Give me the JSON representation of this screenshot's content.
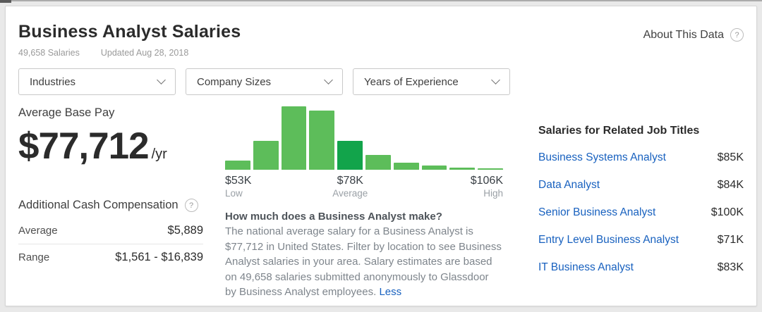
{
  "page": {
    "title": "Business Analyst Salaries",
    "salary_count": "49,658 Salaries",
    "updated": "Updated Aug 28, 2018",
    "about_label": "About This Data",
    "help_glyph": "?"
  },
  "filters": [
    {
      "label": "Industries"
    },
    {
      "label": "Company Sizes"
    },
    {
      "label": "Years of Experience"
    }
  ],
  "average_base_pay": {
    "label": "Average Base Pay",
    "amount": "$77,712",
    "period": "/yr"
  },
  "additional_cash_compensation": {
    "title": "Additional Cash Compensation",
    "rows": [
      {
        "label": "Average",
        "value": "$5,889"
      },
      {
        "label": "Range",
        "value": "$1,561 - $16,839"
      }
    ]
  },
  "chart_data": {
    "type": "bar",
    "values": [
      0.14,
      0.45,
      1.0,
      0.93,
      0.46,
      0.23,
      0.11,
      0.065,
      0.035,
      0.018
    ],
    "highlight_index": 4,
    "axis_labels": [
      {
        "value": "$53K",
        "caption": "Low"
      },
      {
        "value": "$78K",
        "caption": "Average"
      },
      {
        "value": "$106K",
        "caption": "High"
      }
    ],
    "colors": {
      "bar": "#5dbd5a",
      "highlight_bar": "#12a44b"
    },
    "ylabel": "",
    "xlabel": "",
    "legend": "none",
    "grid": false
  },
  "description": {
    "heading": "How much does a Business Analyst make?",
    "body": "The national average salary for a Business Analyst is $77,712 in United States. Filter by location to see Business Analyst salaries in your area. Salary estimates are based on 49,658 salaries submitted anonymously to Glassdoor by Business Analyst employees. ",
    "link": "Less"
  },
  "related_jobs": {
    "title": "Salaries for Related Job Titles",
    "items": [
      {
        "title": "Business Systems Analyst",
        "salary": "$85K"
      },
      {
        "title": "Data Analyst",
        "salary": "$84K"
      },
      {
        "title": "Senior Business Analyst",
        "salary": "$100K"
      },
      {
        "title": "Entry Level Business Analyst",
        "salary": "$71K"
      },
      {
        "title": "IT Business Analyst",
        "salary": "$83K"
      }
    ]
  },
  "colors": {
    "link_blue": "#1861bf",
    "brand_green": "#12a44b"
  }
}
